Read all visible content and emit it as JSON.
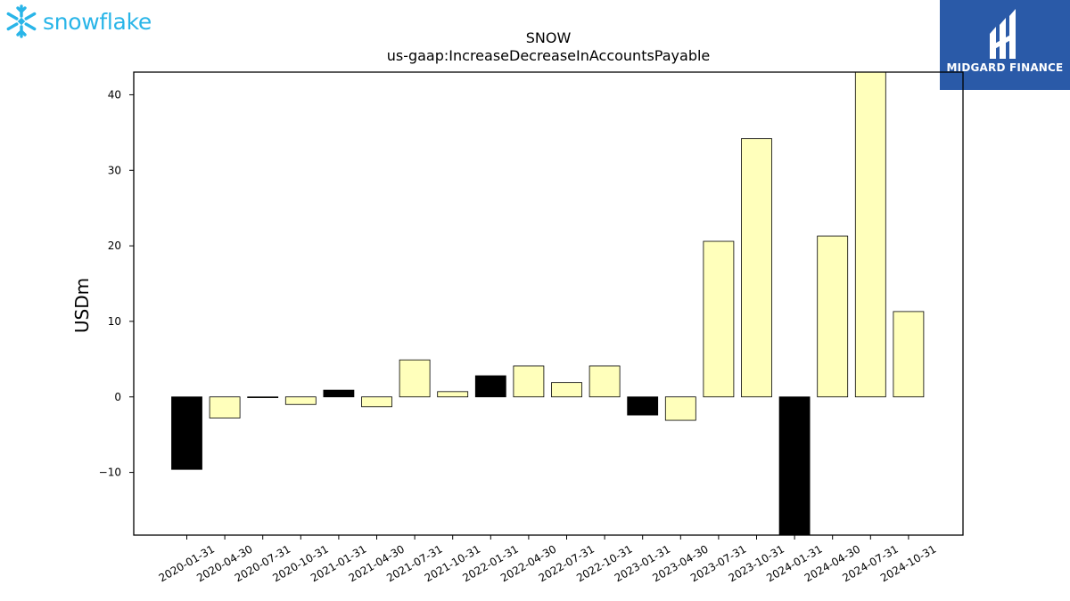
{
  "logos": {
    "left_text": "snowflake",
    "left_color": "#29b5e8",
    "right_text": "MIDGARD FINANCE",
    "right_bg": "#2a5aa8"
  },
  "chart_data": {
    "type": "bar",
    "title": "SNOW",
    "subtitle": "us-gaap:IncreaseDecreaseInAccountsPayable",
    "xlabel": "",
    "ylabel": "USDm",
    "ylim": [
      -18.3,
      43
    ],
    "yticks": [
      -10,
      0,
      10,
      20,
      30,
      40
    ],
    "ytick_labels": [
      "−10",
      "0",
      "10",
      "20",
      "30",
      "40"
    ],
    "grid": false,
    "categories": [
      "2020-01-31",
      "2020-04-30",
      "2020-07-31",
      "2020-10-31",
      "2021-01-31",
      "2021-04-30",
      "2021-07-31",
      "2021-10-31",
      "2022-01-31",
      "2022-04-30",
      "2022-07-31",
      "2022-10-31",
      "2023-01-31",
      "2023-04-30",
      "2023-07-31",
      "2023-10-31",
      "2024-01-31",
      "2024-04-30",
      "2024-07-31",
      "2024-10-31"
    ],
    "values": [
      -9.6,
      -2.8,
      -0.1,
      -1.0,
      0.9,
      -1.3,
      4.9,
      0.7,
      2.8,
      4.1,
      1.9,
      4.1,
      -2.4,
      -3.1,
      20.6,
      34.2,
      -18.3,
      21.3,
      43.0,
      11.3
    ],
    "colors": {
      "fiscal_q4": "#000000",
      "other": "#ffffbb",
      "edge": "#000000"
    }
  }
}
